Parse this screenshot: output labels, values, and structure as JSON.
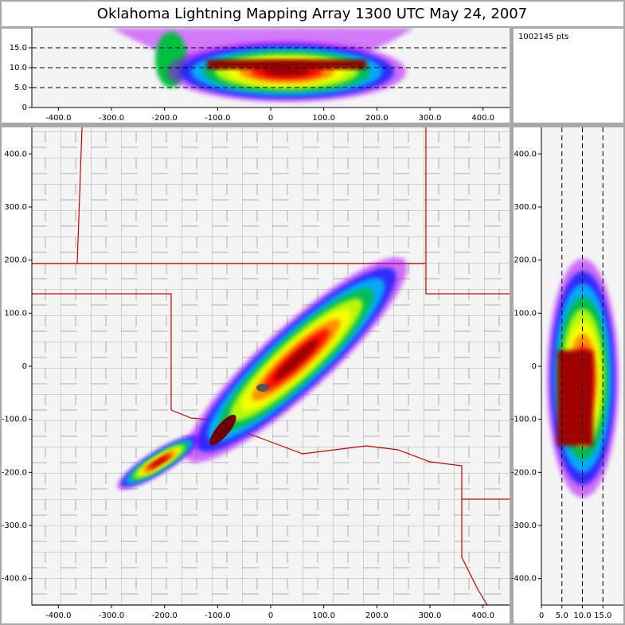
{
  "chart_data": [
    {
      "type": "density",
      "title": "Oklahoma Lightning Mapping Array   1300 UTC  May 24, 2007",
      "point_count": "1002145 pts",
      "xlim": [
        -450,
        450
      ],
      "xticks": [
        {
          "value": -400,
          "label": "-400.0"
        },
        {
          "value": -300,
          "label": "-300.0"
        },
        {
          "value": -200,
          "label": "-200.0"
        },
        {
          "value": -100,
          "label": "-100.0"
        },
        0,
        {
          "value": 100,
          "label": "100.0"
        },
        {
          "value": 200,
          "label": "200.0"
        },
        {
          "value": 300,
          "label": "300.0"
        },
        {
          "value": 400,
          "label": "400.0"
        }
      ],
      "ylim": [
        0,
        20
      ],
      "yticks": [
        0,
        {
          "value": 5,
          "label": "5.0"
        },
        {
          "value": 10,
          "label": "10.0"
        },
        {
          "value": 15,
          "label": "15.0"
        }
      ],
      "grid": true
    },
    {
      "type": "map",
      "xlim": [
        -450,
        450
      ],
      "xticks": [
        {
          "value": -400,
          "label": "-400.0"
        },
        {
          "value": -300,
          "label": "-300.0"
        },
        {
          "value": -200,
          "label": "-200.0"
        },
        {
          "value": -100,
          "label": "-100.0"
        },
        0,
        {
          "value": 100,
          "label": "100.0"
        },
        {
          "value": 200,
          "label": "200.0"
        },
        {
          "value": 300,
          "label": "300.0"
        },
        {
          "value": 400,
          "label": "400.0"
        }
      ],
      "ylim": [
        -450,
        450
      ],
      "yticks": [
        {
          "value": -400,
          "label": "-400.0"
        },
        {
          "value": -300,
          "label": "-300.0"
        },
        {
          "value": -200,
          "label": "-200.0"
        },
        {
          "value": -100,
          "label": "-100.0"
        },
        0,
        {
          "value": 100,
          "label": "100.0"
        },
        {
          "value": 200,
          "label": "200.0"
        },
        {
          "value": 300,
          "label": "300.0"
        },
        {
          "value": 400,
          "label": "400.0"
        }
      ],
      "grid": false
    },
    {
      "type": "density",
      "xlim": [
        0,
        20
      ],
      "xticks": [
        0,
        {
          "value": 5,
          "label": "5.0"
        },
        {
          "value": 10,
          "label": "10.0"
        },
        {
          "value": 15,
          "label": "15.0"
        }
      ],
      "ylim": [
        -450,
        450
      ],
      "yticks": [
        {
          "value": -400,
          "label": "-400.0"
        },
        {
          "value": -300,
          "label": "-300.0"
        },
        {
          "value": -200,
          "label": "-200.0"
        },
        {
          "value": -100,
          "label": "-100.0"
        },
        0,
        {
          "value": 100,
          "label": "100.0"
        },
        {
          "value": 200,
          "label": "200.0"
        },
        {
          "value": 300,
          "label": "300.0"
        },
        {
          "value": 400,
          "label": "400.0"
        }
      ],
      "grid": true
    }
  ]
}
